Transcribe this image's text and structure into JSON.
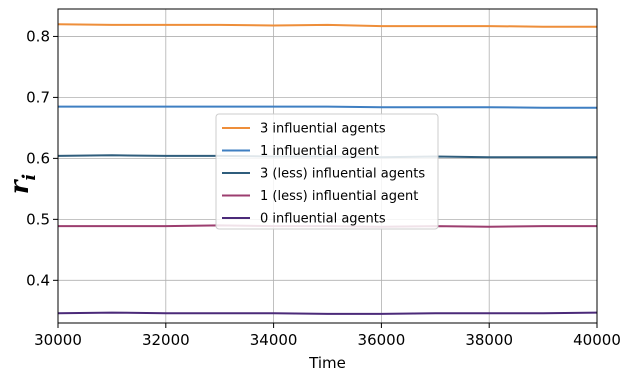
{
  "chart_data": {
    "type": "line",
    "xlabel": "Time",
    "ylabel": {
      "main": "r",
      "sub": "i"
    },
    "xlim": [
      30000,
      40000
    ],
    "ylim": [
      0.33,
      0.845
    ],
    "xticks": [
      30000,
      32000,
      34000,
      36000,
      38000,
      40000
    ],
    "yticks": [
      0.4,
      0.5,
      0.6,
      0.7,
      0.8
    ],
    "xtick_labels": [
      "30000",
      "32000",
      "34000",
      "36000",
      "38000",
      "40000"
    ],
    "ytick_labels": [
      "0.4",
      "0.5",
      "0.6",
      "0.7",
      "0.8"
    ],
    "grid": true,
    "legend_position": "center",
    "x": [
      30000,
      31000,
      32000,
      33000,
      34000,
      35000,
      36000,
      37000,
      38000,
      39000,
      40000
    ],
    "series": [
      {
        "name": "3 influential agents",
        "color": "#ee8e3a",
        "values": [
          0.82,
          0.819,
          0.819,
          0.819,
          0.818,
          0.819,
          0.817,
          0.817,
          0.817,
          0.816,
          0.816
        ]
      },
      {
        "name": "1 influential agent",
        "color": "#3f7fc2",
        "values": [
          0.685,
          0.685,
          0.685,
          0.685,
          0.685,
          0.685,
          0.684,
          0.684,
          0.684,
          0.683,
          0.683
        ]
      },
      {
        "name": "3 (less) influential agents",
        "color": "#2f5d7c",
        "values": [
          0.604,
          0.605,
          0.604,
          0.604,
          0.603,
          0.603,
          0.602,
          0.603,
          0.602,
          0.602,
          0.602
        ]
      },
      {
        "name": "1 (less) influential agent",
        "color": "#9c3e6f",
        "values": [
          0.489,
          0.489,
          0.489,
          0.49,
          0.489,
          0.489,
          0.488,
          0.489,
          0.488,
          0.489,
          0.489
        ]
      },
      {
        "name": "0 influential agents",
        "color": "#4b2a79",
        "values": [
          0.346,
          0.347,
          0.346,
          0.346,
          0.346,
          0.345,
          0.345,
          0.346,
          0.346,
          0.346,
          0.347
        ]
      }
    ]
  }
}
